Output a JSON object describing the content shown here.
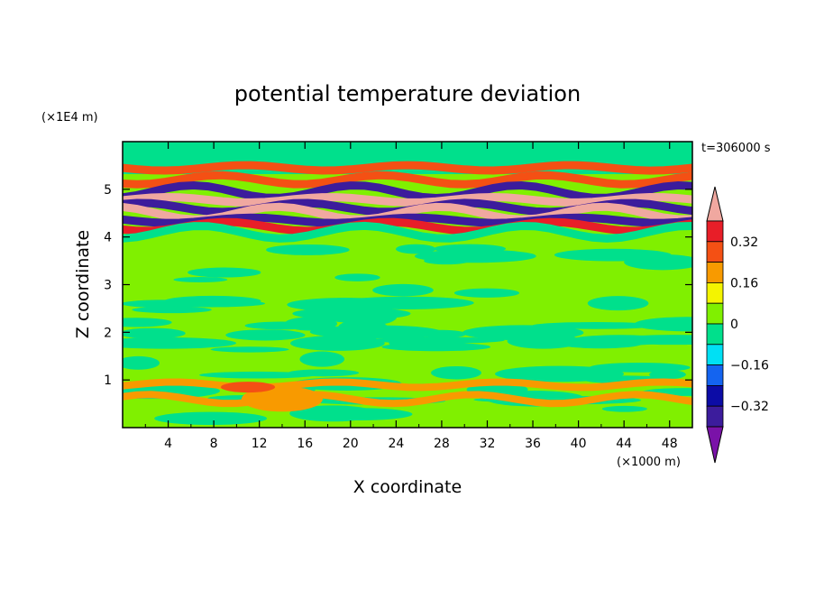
{
  "chart_data": {
    "type": "heatmap",
    "title": "potential temperature deviation",
    "xlabel": "X coordinate",
    "ylabel": "Z coordinate",
    "x_unit": "(×1000 m)",
    "y_unit": "(×1E4 m)",
    "time_label": "t=306000 s",
    "xlim": [
      0,
      50
    ],
    "ylim": [
      0,
      6
    ],
    "x_ticks": [
      "4",
      "8",
      "12",
      "16",
      "20",
      "24",
      "28",
      "32",
      "36",
      "40",
      "44",
      "48"
    ],
    "y_ticks": [
      "1",
      "2",
      "3",
      "4",
      "5"
    ],
    "colorbar": {
      "levels": [
        -0.48,
        -0.4,
        -0.32,
        -0.24,
        -0.16,
        -0.08,
        0,
        0.08,
        0.16,
        0.24,
        0.32,
        0.4
      ],
      "tick_labels": [
        "0.32",
        "0.16",
        "0",
        "−0.16",
        "−0.32"
      ],
      "colors": [
        "#7a12a8",
        "#3c1c9c",
        "#0c0ca6",
        "#1464f0",
        "#00e0f4",
        "#00e08c",
        "#80f000",
        "#f4f400",
        "#f89a00",
        "#f45014",
        "#e81e28",
        "#f0a8a0"
      ]
    },
    "bands": [
      {
        "z": 5.45,
        "value": 0.3
      },
      {
        "z": 5.2,
        "value": 0.24
      },
      {
        "z": 4.95,
        "value": -0.4
      },
      {
        "z": 4.78,
        "value": 0.45
      },
      {
        "z": 4.62,
        "value": -0.35
      },
      {
        "z": 4.5,
        "value": 0.45
      },
      {
        "z": 4.35,
        "value": -0.4
      },
      {
        "z": 4.22,
        "value": 0.35
      },
      {
        "z": 4.1,
        "value": -0.05
      },
      {
        "z": 0.9,
        "value": 0.2
      },
      {
        "z": 0.6,
        "value": 0.16
      }
    ]
  }
}
